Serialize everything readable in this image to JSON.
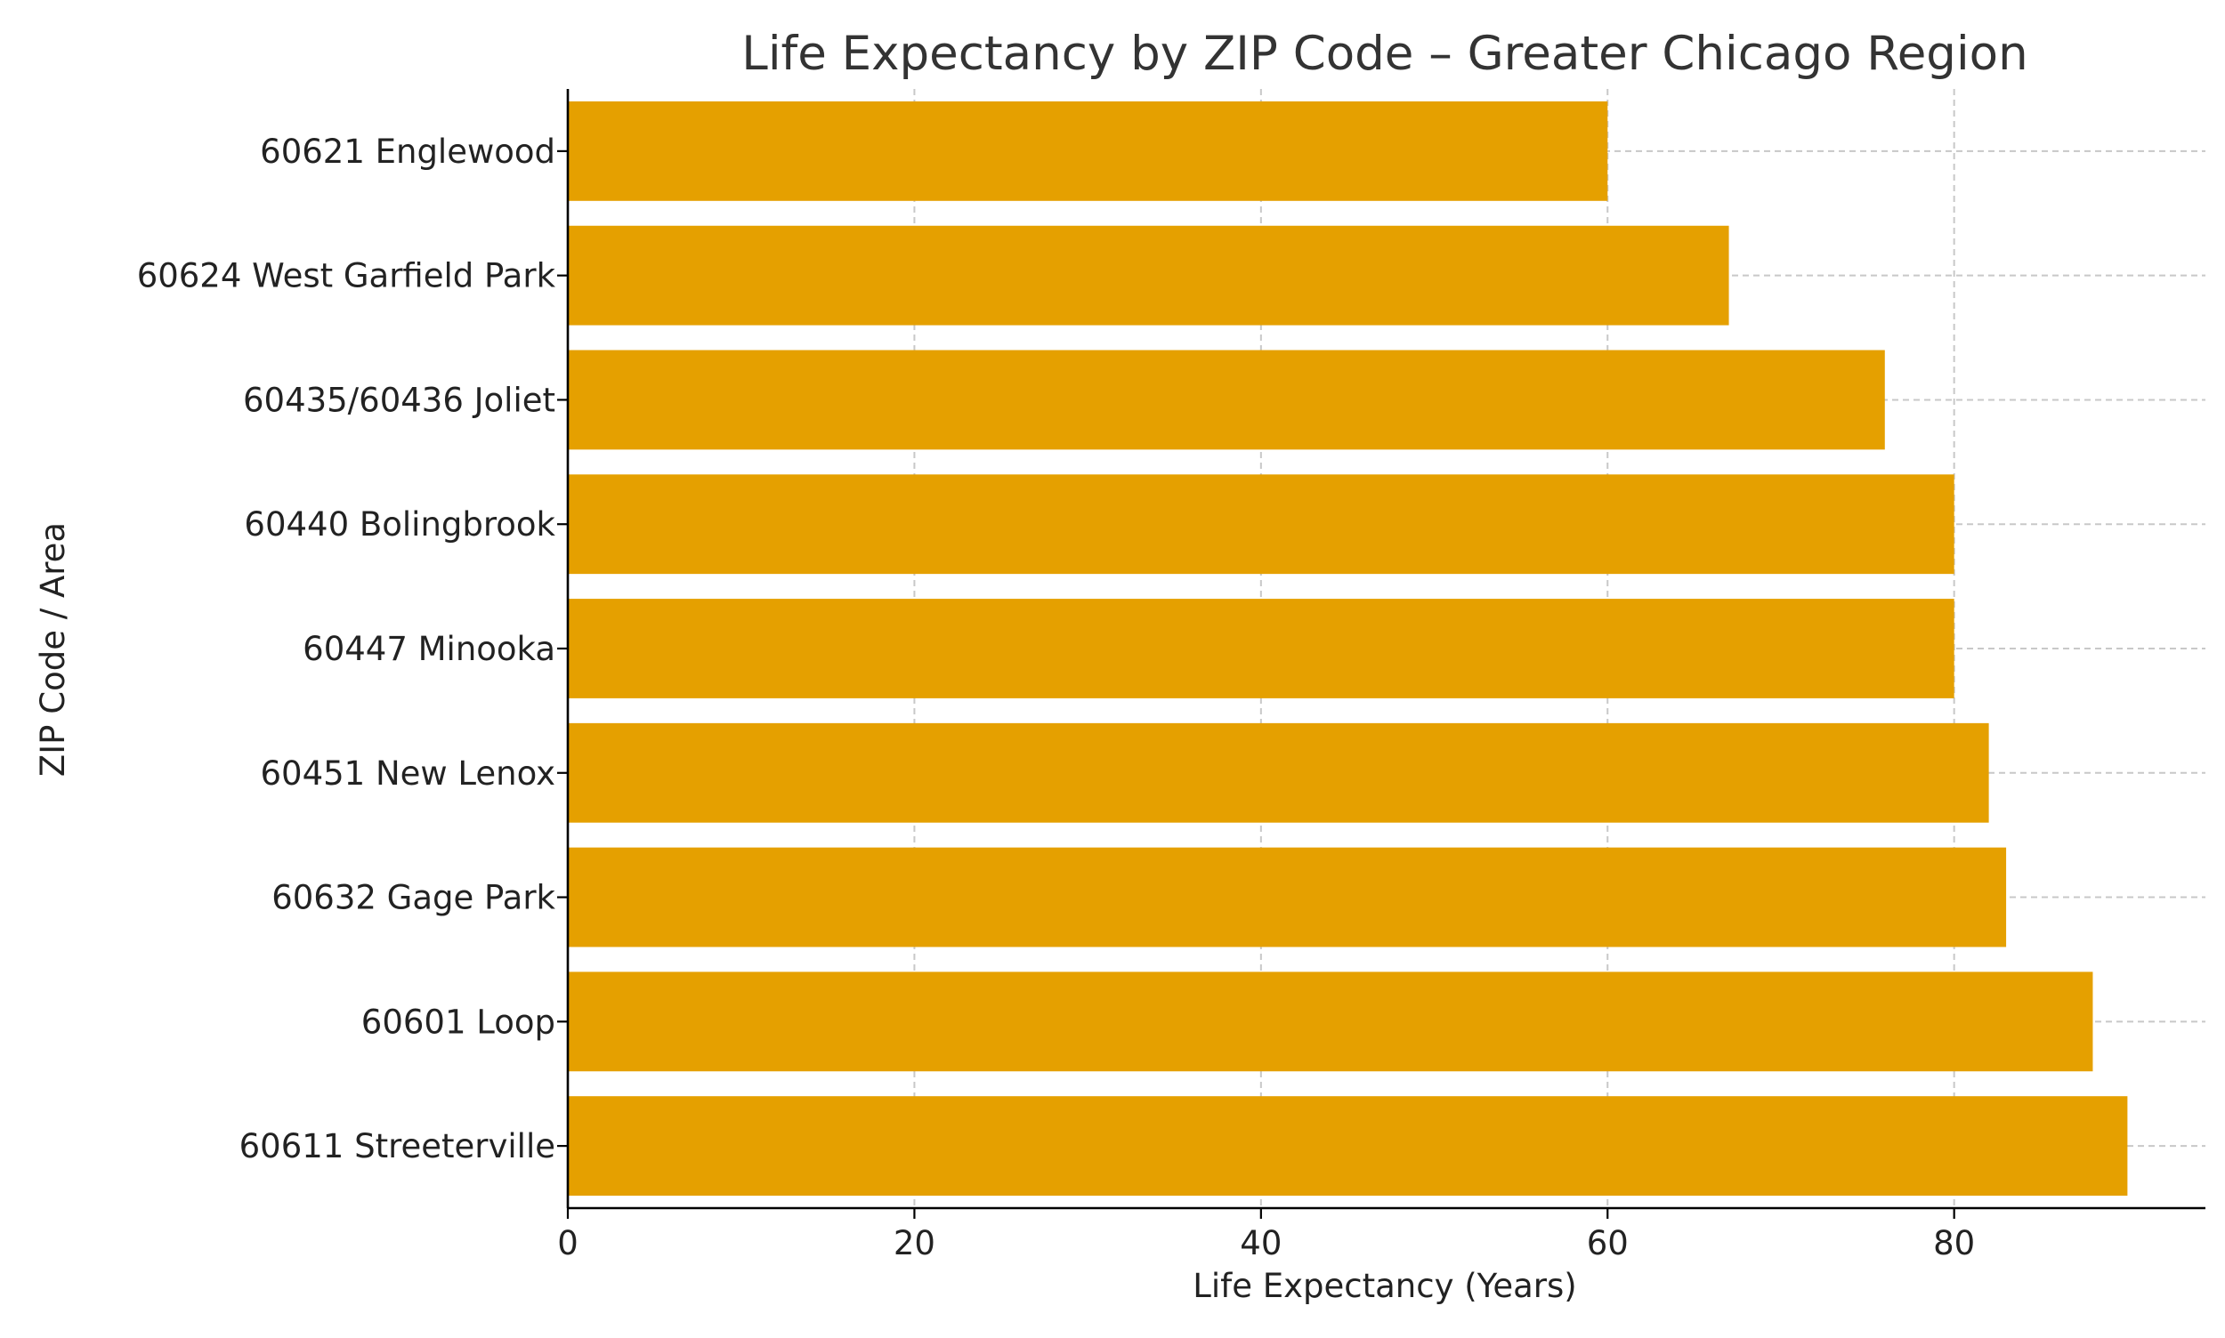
{
  "chart_data": {
    "type": "bar",
    "orientation": "horizontal",
    "title": "Life Expectancy by ZIP Code – Greater Chicago Region",
    "xlabel": "Life Expectancy (Years)",
    "ylabel": "ZIP Code / Area",
    "categories": [
      "60621 Englewood",
      "60624 West Garfield Park",
      "60435/60436 Joliet",
      "60440 Bolingbrook",
      "60447 Minooka",
      "60451 New Lenox",
      "60632 Gage Park",
      "60601 Loop",
      "60611 Streeterville"
    ],
    "values": [
      60,
      67,
      76,
      80,
      80,
      82,
      83,
      88,
      90
    ],
    "xlim": [
      0,
      94.5
    ],
    "xticks": [
      0,
      20,
      40,
      60,
      80
    ],
    "grid": true,
    "bar_color": "#E5A000",
    "legend": "none"
  }
}
